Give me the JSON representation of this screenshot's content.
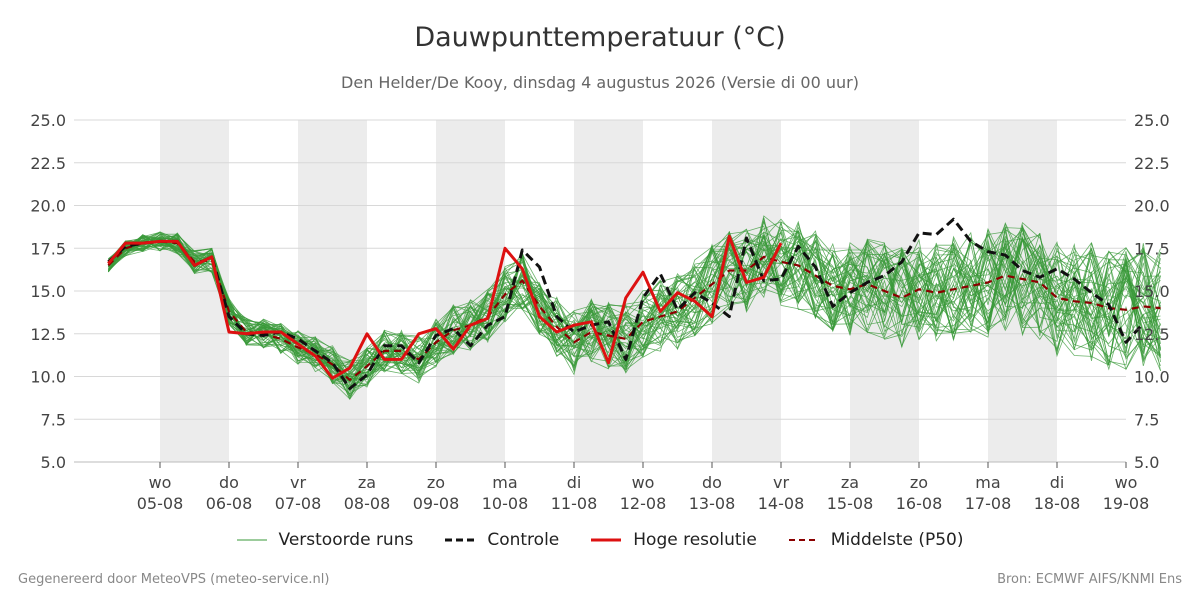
{
  "title": "Dauwpunttemperatuur (°C)",
  "subtitle": "Den Helder/De Kooy, dinsdag  4 augustus 2026 (Versie di 00 uur)",
  "footer": {
    "left": "Gegenereerd door MeteoVPS (meteo-service.nl)",
    "right": "Bron: ECMWF AIFS/KNMI Ens"
  },
  "legend": [
    {
      "label": "Verstoorde runs",
      "color": "#3a9a3a",
      "style": "thin"
    },
    {
      "label": "Controle",
      "color": "#111111",
      "style": "dashed"
    },
    {
      "label": "Hoge resolutie",
      "color": "#dd1111",
      "style": "solid"
    },
    {
      "label": "Middelste (P50)",
      "color": "#8b0000",
      "style": "dashed"
    }
  ],
  "chart_data": {
    "type": "line",
    "title": "Dauwpunttemperatuur (°C)",
    "xlim": [
      -0.75,
      14
    ],
    "ylim": [
      5.0,
      25.0
    ],
    "yticks": [
      5.0,
      7.5,
      10.0,
      12.5,
      15.0,
      17.5,
      20.0,
      22.5,
      25.0
    ],
    "grid": true,
    "legend_position": "bottom",
    "x_ticks": [
      {
        "day": "wo",
        "date": "05-08"
      },
      {
        "day": "do",
        "date": "06-08"
      },
      {
        "day": "vr",
        "date": "07-08"
      },
      {
        "day": "za",
        "date": "08-08"
      },
      {
        "day": "zo",
        "date": "09-08"
      },
      {
        "day": "ma",
        "date": "10-08"
      },
      {
        "day": "di",
        "date": "11-08"
      },
      {
        "day": "wo",
        "date": "12-08"
      },
      {
        "day": "do",
        "date": "13-08"
      },
      {
        "day": "vr",
        "date": "14-08"
      },
      {
        "day": "za",
        "date": "15-08"
      },
      {
        "day": "zo",
        "date": "16-08"
      },
      {
        "day": "ma",
        "date": "17-08"
      },
      {
        "day": "di",
        "date": "18-08"
      },
      {
        "day": "wo",
        "date": "19-08"
      }
    ],
    "shaded_days": [
      0,
      2,
      4,
      6,
      8,
      10,
      12
    ],
    "time_step_days": 0.25,
    "series": [
      {
        "name": "Controle",
        "color": "#111111",
        "dash": true,
        "values": [
          16.7,
          17.6,
          17.8,
          17.9,
          17.9,
          16.5,
          17.0,
          13.5,
          12.5,
          12.4,
          12.6,
          12.2,
          11.5,
          10.8,
          9.3,
          10.1,
          11.8,
          11.8,
          10.8,
          12.4,
          12.8,
          11.8,
          13.0,
          13.5,
          17.4,
          16.4,
          13.5,
          12.6,
          13.0,
          13.2,
          11.0,
          14.6,
          16.0,
          13.9,
          14.9,
          14.3,
          13.5,
          18.1,
          15.6,
          15.7,
          17.6,
          16.4,
          14.1,
          14.9,
          15.5,
          15.9,
          16.7,
          18.4,
          18.3,
          19.2,
          17.9,
          17.3,
          17.1,
          16.2,
          15.8,
          16.3,
          15.7,
          14.9,
          14.2,
          12.0,
          13.1
        ]
      },
      {
        "name": "Hoge resolutie",
        "color": "#dd1111",
        "dash": false,
        "values": [
          16.6,
          17.8,
          17.8,
          17.9,
          17.9,
          16.5,
          17.0,
          12.6,
          12.5,
          12.6,
          12.6,
          11.9,
          11.2,
          9.9,
          10.5,
          12.5,
          11.0,
          11.0,
          12.5,
          12.8,
          11.6,
          13.0,
          13.4,
          17.5,
          16.3,
          13.5,
          12.6,
          13.0,
          13.2,
          10.8,
          14.6,
          16.1,
          13.8,
          14.9,
          14.4,
          13.5,
          18.2,
          15.5,
          15.8,
          17.8
        ]
      },
      {
        "name": "Middelste (P50)",
        "color": "#8b0000",
        "dash": true,
        "values": [
          16.5,
          17.5,
          17.8,
          17.9,
          17.8,
          16.7,
          16.8,
          13.8,
          12.6,
          12.5,
          12.2,
          11.7,
          11.3,
          10.7,
          9.8,
          10.6,
          11.5,
          11.5,
          11.0,
          12.0,
          12.7,
          13.0,
          13.5,
          14.8,
          15.6,
          14.1,
          12.9,
          12.0,
          12.6,
          12.4,
          12.2,
          13.2,
          13.5,
          13.8,
          14.6,
          15.4,
          16.2,
          16.2,
          17.0,
          16.7,
          16.5,
          15.9,
          15.3,
          15.1,
          15.4,
          15.0,
          14.6,
          15.1,
          14.9,
          15.1,
          15.3,
          15.5,
          15.9,
          15.7,
          15.5,
          14.6,
          14.4,
          14.3,
          14.0,
          13.9,
          14.1,
          14.0
        ]
      }
    ]
  }
}
